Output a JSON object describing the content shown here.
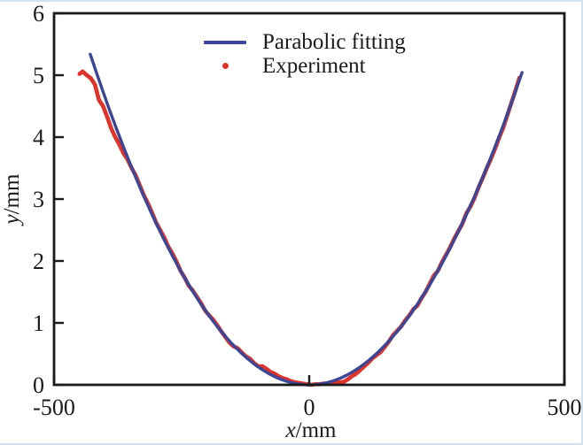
{
  "figure": {
    "background": "#fffffe",
    "border_color": "#d3e0ee",
    "frame_color": "#1a1a1a"
  },
  "legend": {
    "items": [
      {
        "label": "Parabolic fitting",
        "marker": "line",
        "color": "#3b4697"
      },
      {
        "label": "Experiment",
        "marker": "dot",
        "color": "#de342b"
      }
    ]
  },
  "axes": {
    "x_label_var": "x",
    "x_label_unit": "/mm",
    "y_label_var": "y",
    "y_label_unit": "/mm",
    "x_ticks": [
      "-500",
      "0",
      "500"
    ],
    "x_tick_values": [
      -500,
      0,
      500
    ],
    "y_ticks": [
      "0",
      "1",
      "2",
      "3",
      "4",
      "5",
      "6"
    ],
    "y_tick_values": [
      0,
      1,
      2,
      3,
      4,
      5,
      6
    ]
  },
  "chart_data": {
    "type": "line+scatter",
    "title": "",
    "xlabel": "x/mm",
    "ylabel": "y/mm",
    "xlim": [
      -500,
      500
    ],
    "ylim": [
      0,
      6
    ],
    "grid": false,
    "legend_position": "upper center",
    "series": [
      {
        "name": "Parabolic fitting",
        "type": "line",
        "color": "#3b4697",
        "fit": {
          "equation": "y = a*x^2",
          "a": 2.9e-05,
          "x_domain": [
            -429,
            422
          ]
        }
      },
      {
        "name": "Experiment",
        "type": "scatter",
        "color": "#de342b",
        "points": [
          [
            -450,
            5.02
          ],
          [
            -444,
            5.06
          ],
          [
            -436,
            5.0
          ],
          [
            -428,
            4.95
          ],
          [
            -420,
            4.85
          ],
          [
            -412,
            4.6
          ],
          [
            -404,
            4.5
          ],
          [
            -396,
            4.33
          ],
          [
            -388,
            4.14
          ],
          [
            -380,
            4.0
          ],
          [
            -372,
            3.88
          ],
          [
            -364,
            3.74
          ],
          [
            -356,
            3.64
          ],
          [
            -348,
            3.5
          ],
          [
            -340,
            3.38
          ],
          [
            -332,
            3.22
          ],
          [
            -324,
            3.06
          ],
          [
            -316,
            2.93
          ],
          [
            -308,
            2.78
          ],
          [
            -300,
            2.62
          ],
          [
            -292,
            2.5
          ],
          [
            -284,
            2.38
          ],
          [
            -276,
            2.23
          ],
          [
            -268,
            2.12
          ],
          [
            -260,
            1.99
          ],
          [
            -252,
            1.84
          ],
          [
            -244,
            1.73
          ],
          [
            -236,
            1.6
          ],
          [
            -228,
            1.52
          ],
          [
            -220,
            1.42
          ],
          [
            -212,
            1.32
          ],
          [
            -204,
            1.2
          ],
          [
            -196,
            1.12
          ],
          [
            -188,
            1.05
          ],
          [
            -180,
            0.96
          ],
          [
            -172,
            0.86
          ],
          [
            -164,
            0.77
          ],
          [
            -156,
            0.68
          ],
          [
            -148,
            0.62
          ],
          [
            -140,
            0.59
          ],
          [
            -132,
            0.52
          ],
          [
            -124,
            0.46
          ],
          [
            -116,
            0.42
          ],
          [
            -108,
            0.35
          ],
          [
            -100,
            0.3
          ],
          [
            -92,
            0.3
          ],
          [
            -84,
            0.26
          ],
          [
            -76,
            0.21
          ],
          [
            -68,
            0.18
          ],
          [
            -60,
            0.14
          ],
          [
            -52,
            0.11
          ],
          [
            -44,
            0.09
          ],
          [
            -36,
            0.06
          ],
          [
            -28,
            0.04
          ],
          [
            -20,
            0.03
          ],
          [
            -12,
            0.02
          ],
          [
            -4,
            0.01
          ],
          [
            4,
            0.0
          ],
          [
            12,
            0.01
          ],
          [
            20,
            0.01
          ],
          [
            28,
            0.02
          ],
          [
            36,
            0.02
          ],
          [
            44,
            0.02
          ],
          [
            52,
            0.03
          ],
          [
            60,
            0.04
          ],
          [
            68,
            0.05
          ],
          [
            76,
            0.09
          ],
          [
            84,
            0.14
          ],
          [
            92,
            0.18
          ],
          [
            100,
            0.24
          ],
          [
            108,
            0.3
          ],
          [
            116,
            0.36
          ],
          [
            124,
            0.43
          ],
          [
            132,
            0.48
          ],
          [
            140,
            0.53
          ],
          [
            148,
            0.61
          ],
          [
            156,
            0.7
          ],
          [
            164,
            0.8
          ],
          [
            172,
            0.87
          ],
          [
            180,
            0.94
          ],
          [
            188,
            1.04
          ],
          [
            196,
            1.12
          ],
          [
            204,
            1.22
          ],
          [
            212,
            1.28
          ],
          [
            220,
            1.4
          ],
          [
            228,
            1.5
          ],
          [
            236,
            1.63
          ],
          [
            244,
            1.76
          ],
          [
            252,
            1.84
          ],
          [
            260,
            1.98
          ],
          [
            268,
            2.1
          ],
          [
            276,
            2.22
          ],
          [
            284,
            2.36
          ],
          [
            292,
            2.48
          ],
          [
            300,
            2.6
          ],
          [
            308,
            2.77
          ],
          [
            316,
            2.88
          ],
          [
            324,
            3.02
          ],
          [
            332,
            3.19
          ],
          [
            340,
            3.34
          ],
          [
            348,
            3.5
          ],
          [
            356,
            3.65
          ],
          [
            364,
            3.81
          ],
          [
            372,
            3.99
          ],
          [
            380,
            4.15
          ],
          [
            388,
            4.35
          ],
          [
            396,
            4.55
          ],
          [
            404,
            4.75
          ],
          [
            412,
            4.96
          ]
        ]
      }
    ]
  }
}
